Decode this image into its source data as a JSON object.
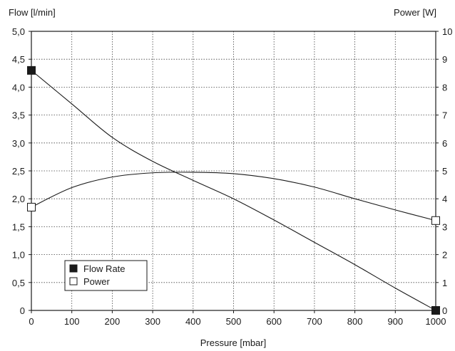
{
  "chart_data": {
    "type": "line",
    "xlabel": "Pressure [mbar]",
    "ylabel_left": "Flow [l/min]",
    "ylabel_right": "Power [W]",
    "xlim": [
      0,
      1000
    ],
    "ylim_left": [
      0,
      5
    ],
    "ylim_right": [
      0,
      10
    ],
    "x_ticks": [
      0,
      100,
      200,
      300,
      400,
      500,
      600,
      700,
      800,
      900,
      1000
    ],
    "x_tick_labels": [
      "0",
      "100",
      "200",
      "300",
      "400",
      "500",
      "600",
      "700",
      "800",
      "900",
      "1000"
    ],
    "y_left_ticks": [
      0,
      0.5,
      1,
      1.5,
      2,
      2.5,
      3,
      3.5,
      4,
      4.5,
      5
    ],
    "y_left_tick_labels": [
      "0",
      "0,5",
      "1,0",
      "1,5",
      "2,0",
      "2,5",
      "3,0",
      "3,5",
      "4,0",
      "4,5",
      "5,0"
    ],
    "y_right_ticks": [
      0,
      1,
      2,
      3,
      4,
      5,
      6,
      7,
      8,
      9,
      10
    ],
    "y_right_tick_labels": [
      "0",
      "1",
      "2",
      "3",
      "4",
      "5",
      "6",
      "7",
      "8",
      "9",
      "10"
    ],
    "grid": true,
    "legend_position": "bottom-left",
    "series": [
      {
        "name": "Flow Rate",
        "axis": "left",
        "marker": "filled-square",
        "color": "#1a1a1a",
        "x": [
          0,
          100,
          200,
          300,
          400,
          500,
          600,
          700,
          800,
          900,
          1000
        ],
        "y": [
          4.3,
          3.7,
          3.1,
          2.67,
          2.33,
          2.0,
          1.62,
          1.22,
          0.82,
          0.4,
          0.0
        ],
        "marked_points": [
          0,
          10
        ]
      },
      {
        "name": "Power",
        "axis": "right",
        "marker": "open-square",
        "color": "#1a1a1a",
        "x": [
          0,
          100,
          200,
          300,
          400,
          500,
          600,
          700,
          800,
          900,
          1000
        ],
        "y": [
          3.7,
          4.4,
          4.78,
          4.93,
          4.95,
          4.9,
          4.72,
          4.42,
          4.0,
          3.6,
          3.22
        ],
        "marked_points": [
          0,
          10
        ]
      }
    ]
  }
}
